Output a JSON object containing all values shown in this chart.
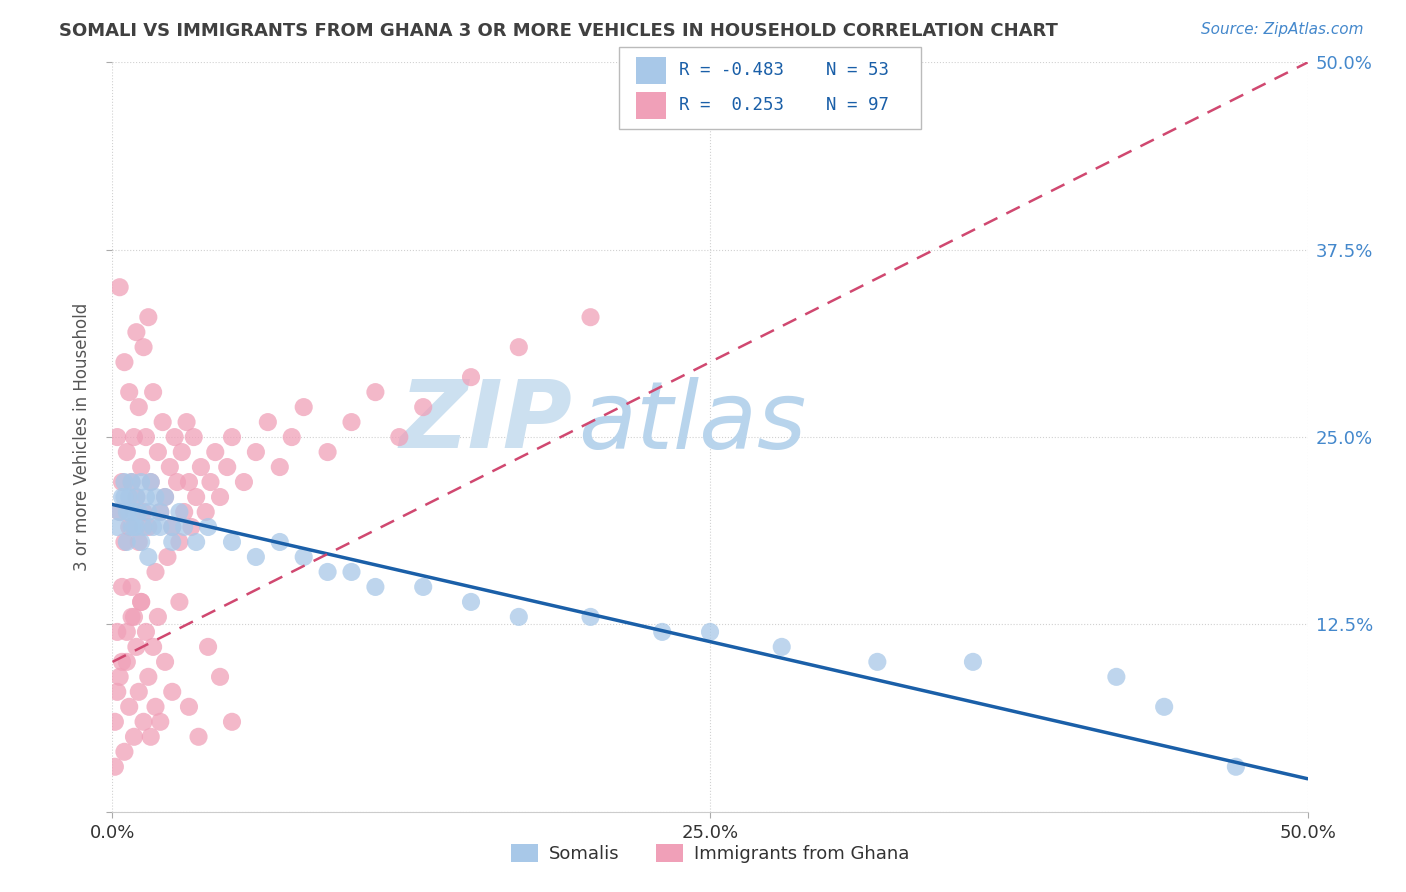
{
  "title": "SOMALI VS IMMIGRANTS FROM GHANA 3 OR MORE VEHICLES IN HOUSEHOLD CORRELATION CHART",
  "source_text": "Source: ZipAtlas.com",
  "xlabel_somali": "Somalis",
  "xlabel_ghana": "Immigrants from Ghana",
  "ylabel": "3 or more Vehicles in Household",
  "xlim": [
    0.0,
    0.5
  ],
  "ylim": [
    0.0,
    0.5
  ],
  "somali_R": -0.483,
  "somali_N": 53,
  "ghana_R": 0.253,
  "ghana_N": 97,
  "somali_color": "#a8c8e8",
  "ghana_color": "#f0a0b8",
  "somali_line_color": "#1a5fa8",
  "ghana_line_color": "#d04870",
  "watermark_zip_color": "#d0e4f4",
  "watermark_atlas_color": "#b8d4ec",
  "background_color": "#ffffff",
  "grid_color": "#cccccc",
  "title_color": "#404040",
  "right_tick_color": "#4488cc",
  "somali_x": [
    0.002,
    0.003,
    0.004,
    0.005,
    0.006,
    0.007,
    0.007,
    0.008,
    0.008,
    0.009,
    0.01,
    0.01,
    0.011,
    0.012,
    0.013,
    0.014,
    0.015,
    0.016,
    0.017,
    0.018,
    0.02,
    0.022,
    0.025,
    0.028,
    0.03,
    0.035,
    0.04,
    0.05,
    0.06,
    0.07,
    0.08,
    0.09,
    0.1,
    0.11,
    0.13,
    0.15,
    0.17,
    0.2,
    0.23,
    0.25,
    0.28,
    0.32,
    0.36,
    0.42,
    0.44,
    0.47,
    0.005,
    0.006,
    0.009,
    0.012,
    0.015,
    0.02,
    0.025
  ],
  "somali_y": [
    0.19,
    0.2,
    0.21,
    0.22,
    0.18,
    0.2,
    0.21,
    0.19,
    0.22,
    0.2,
    0.21,
    0.19,
    0.2,
    0.22,
    0.19,
    0.21,
    0.2,
    0.22,
    0.19,
    0.21,
    0.2,
    0.21,
    0.19,
    0.2,
    0.19,
    0.18,
    0.19,
    0.18,
    0.17,
    0.18,
    0.17,
    0.16,
    0.16,
    0.15,
    0.15,
    0.14,
    0.13,
    0.13,
    0.12,
    0.12,
    0.11,
    0.1,
    0.1,
    0.09,
    0.07,
    0.03,
    0.21,
    0.2,
    0.19,
    0.18,
    0.17,
    0.19,
    0.18
  ],
  "ghana_x": [
    0.001,
    0.002,
    0.002,
    0.003,
    0.003,
    0.004,
    0.004,
    0.005,
    0.005,
    0.006,
    0.006,
    0.007,
    0.007,
    0.008,
    0.008,
    0.009,
    0.009,
    0.01,
    0.01,
    0.011,
    0.011,
    0.012,
    0.012,
    0.013,
    0.013,
    0.014,
    0.015,
    0.015,
    0.016,
    0.017,
    0.018,
    0.019,
    0.02,
    0.021,
    0.022,
    0.023,
    0.024,
    0.025,
    0.026,
    0.027,
    0.028,
    0.029,
    0.03,
    0.031,
    0.032,
    0.033,
    0.034,
    0.035,
    0.037,
    0.039,
    0.041,
    0.043,
    0.045,
    0.048,
    0.05,
    0.055,
    0.06,
    0.065,
    0.07,
    0.075,
    0.08,
    0.09,
    0.1,
    0.11,
    0.12,
    0.13,
    0.15,
    0.17,
    0.2,
    0.001,
    0.002,
    0.003,
    0.004,
    0.005,
    0.006,
    0.007,
    0.008,
    0.009,
    0.01,
    0.011,
    0.012,
    0.013,
    0.014,
    0.015,
    0.016,
    0.017,
    0.018,
    0.019,
    0.02,
    0.022,
    0.025,
    0.028,
    0.032,
    0.036,
    0.04,
    0.045,
    0.05
  ],
  "ghana_y": [
    0.03,
    0.25,
    0.08,
    0.2,
    0.35,
    0.22,
    0.1,
    0.18,
    0.3,
    0.24,
    0.12,
    0.19,
    0.28,
    0.22,
    0.15,
    0.25,
    0.13,
    0.21,
    0.32,
    0.18,
    0.27,
    0.23,
    0.14,
    0.2,
    0.31,
    0.25,
    0.19,
    0.33,
    0.22,
    0.28,
    0.16,
    0.24,
    0.2,
    0.26,
    0.21,
    0.17,
    0.23,
    0.19,
    0.25,
    0.22,
    0.18,
    0.24,
    0.2,
    0.26,
    0.22,
    0.19,
    0.25,
    0.21,
    0.23,
    0.2,
    0.22,
    0.24,
    0.21,
    0.23,
    0.25,
    0.22,
    0.24,
    0.26,
    0.23,
    0.25,
    0.27,
    0.24,
    0.26,
    0.28,
    0.25,
    0.27,
    0.29,
    0.31,
    0.33,
    0.06,
    0.12,
    0.09,
    0.15,
    0.04,
    0.1,
    0.07,
    0.13,
    0.05,
    0.11,
    0.08,
    0.14,
    0.06,
    0.12,
    0.09,
    0.05,
    0.11,
    0.07,
    0.13,
    0.06,
    0.1,
    0.08,
    0.14,
    0.07,
    0.05,
    0.11,
    0.09,
    0.06
  ],
  "somali_line_x": [
    0.0,
    0.5
  ],
  "somali_line_y": [
    0.205,
    0.022
  ],
  "ghana_line_x": [
    0.0,
    0.5
  ],
  "ghana_line_y": [
    0.1,
    0.5
  ]
}
